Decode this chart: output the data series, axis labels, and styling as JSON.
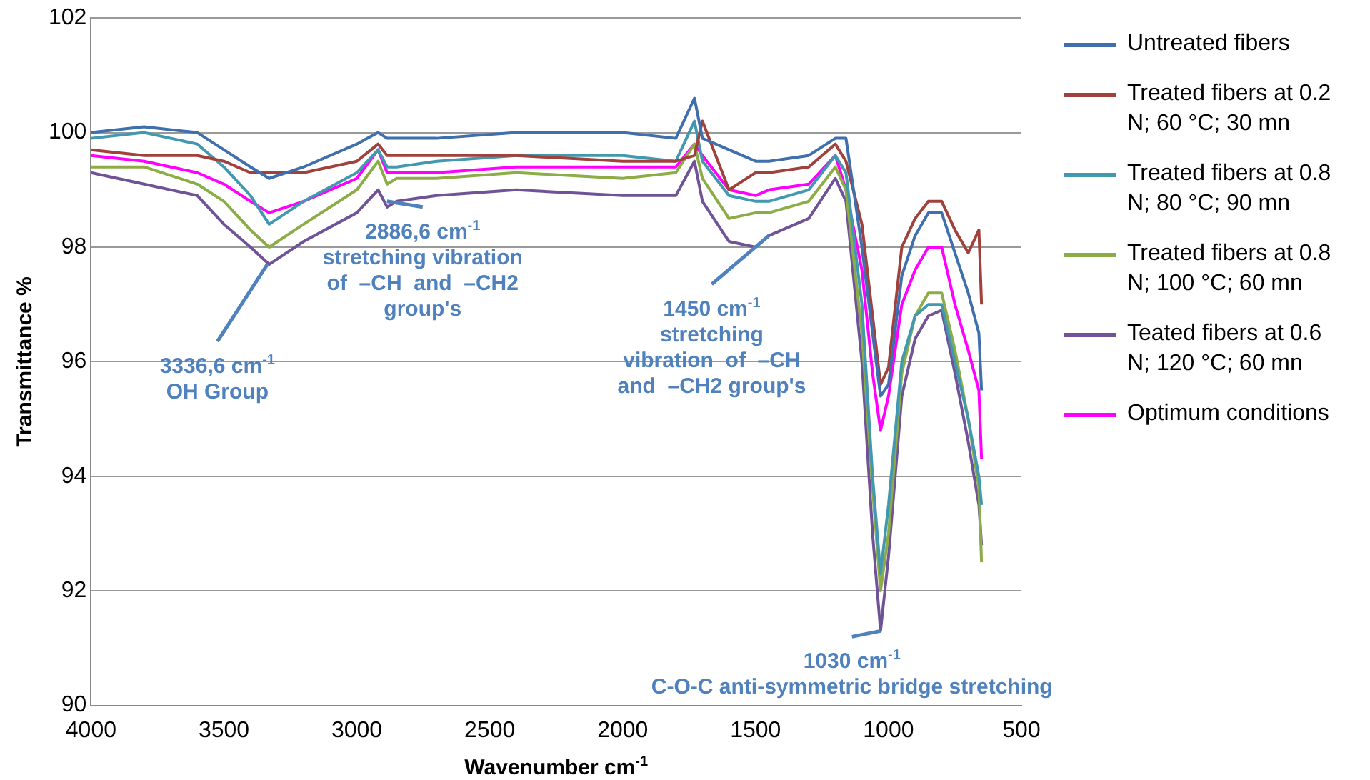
{
  "chart_data": {
    "type": "line",
    "xlabel": "Wavenumber cm$^{-1}$",
    "ylabel": "Transmittance %",
    "x": [
      4000,
      3800,
      3600,
      3500,
      3400,
      3330,
      3200,
      3000,
      2920,
      2886,
      2850,
      2700,
      2400,
      2000,
      1800,
      1730,
      1700,
      1600,
      1500,
      1450,
      1300,
      1200,
      1160,
      1100,
      1060,
      1030,
      1000,
      950,
      900,
      850,
      800,
      750,
      700,
      660,
      650
    ],
    "series": [
      {
        "name": "Untreated fibers",
        "color": "#3f6fad",
        "values": [
          100.0,
          100.1,
          100.0,
          99.7,
          99.4,
          99.2,
          99.4,
          99.8,
          100.0,
          99.9,
          99.9,
          99.9,
          100.0,
          100.0,
          99.9,
          100.6,
          99.9,
          99.7,
          99.5,
          99.5,
          99.6,
          99.9,
          99.9,
          98.0,
          96.5,
          95.4,
          95.6,
          97.5,
          98.2,
          98.6,
          98.6,
          97.9,
          97.2,
          96.5,
          95.5
        ]
      },
      {
        "name": "Treated fibers at 0.2 N; 60 °C; 30 mn",
        "color": "#a0413c",
        "values": [
          99.7,
          99.6,
          99.6,
          99.5,
          99.3,
          99.3,
          99.3,
          99.5,
          99.8,
          99.6,
          99.6,
          99.6,
          99.6,
          99.5,
          99.5,
          99.6,
          100.2,
          99.0,
          99.3,
          99.3,
          99.4,
          99.8,
          99.5,
          98.4,
          96.8,
          95.6,
          95.9,
          98.0,
          98.5,
          98.8,
          98.8,
          98.3,
          97.9,
          98.3,
          97.0
        ]
      },
      {
        "name": "Treated fibers at 0.8 N; 80 °C; 90 mn",
        "color": "#4198af",
        "values": [
          99.9,
          100.0,
          99.8,
          99.4,
          98.9,
          98.4,
          98.8,
          99.3,
          99.7,
          99.4,
          99.4,
          99.5,
          99.6,
          99.6,
          99.5,
          100.2,
          99.5,
          98.9,
          98.8,
          98.8,
          99.0,
          99.6,
          99.3,
          97.0,
          94.0,
          92.3,
          93.5,
          96.0,
          96.8,
          97.0,
          97.0,
          96.0,
          95.0,
          94.0,
          93.5
        ]
      },
      {
        "name": "Treated fibers at 0.8 N; 100 °C; 60 mn",
        "color": "#8bac46",
        "values": [
          99.4,
          99.4,
          99.1,
          98.8,
          98.3,
          98.0,
          98.4,
          99.0,
          99.5,
          99.1,
          99.2,
          99.2,
          99.3,
          99.2,
          99.3,
          99.8,
          99.2,
          98.5,
          98.6,
          98.6,
          98.8,
          99.4,
          99.0,
          96.5,
          93.8,
          92.0,
          93.0,
          95.8,
          96.8,
          97.2,
          97.2,
          96.2,
          95.0,
          93.8,
          92.5
        ]
      },
      {
        "name": "Teated fibers at 0.6 N; 120 °C; 60 mn",
        "color": "#6f5396",
        "values": [
          99.3,
          99.1,
          98.9,
          98.4,
          98.0,
          97.7,
          98.1,
          98.6,
          99.0,
          98.7,
          98.8,
          98.9,
          99.0,
          98.9,
          98.9,
          99.5,
          98.8,
          98.1,
          98.0,
          98.2,
          98.5,
          99.2,
          98.8,
          96.0,
          93.0,
          91.3,
          92.6,
          95.4,
          96.4,
          96.8,
          96.9,
          95.8,
          94.6,
          93.5,
          92.8
        ]
      },
      {
        "name": "Optimum conditions",
        "color": "#ff00ff",
        "values": [
          99.6,
          99.5,
          99.3,
          99.1,
          98.8,
          98.6,
          98.8,
          99.2,
          99.7,
          99.3,
          99.3,
          99.3,
          99.4,
          99.4,
          99.4,
          99.8,
          99.6,
          99.0,
          98.9,
          99.0,
          99.1,
          99.6,
          99.0,
          97.6,
          95.8,
          94.8,
          95.4,
          97.0,
          97.6,
          98.0,
          98.0,
          97.0,
          96.2,
          95.5,
          94.3
        ]
      }
    ],
    "xlim": [
      4000,
      500
    ],
    "xticks": [
      4000,
      3500,
      3000,
      2500,
      2000,
      1500,
      1000,
      500
    ],
    "ylim": [
      90,
      102
    ],
    "yticks": [
      90,
      92,
      94,
      96,
      98,
      100,
      102
    ],
    "grid": "y",
    "legend": "right",
    "marker": "none",
    "line_style": "solid",
    "annotations": [
      {
        "text": "3336,6 cm$^{-1}$\nOH Group",
        "x": 3336.6,
        "y": 97.7
      },
      {
        "text": "2886,6 cm$^{-1}$\nstretching vibration\nof  –CH  and  –CH2\ngroup's",
        "x": 2886.6,
        "y": 98.8
      },
      {
        "text": "1450 cm$^{-1}$\nstretching\nvibration  of  –CH\nand  –CH2 group's",
        "x": 1450,
        "y": 98.2
      },
      {
        "text": "1030 cm$^{-1}$\nC-O-C anti-symmetric bridge stretching",
        "x": 1030,
        "y": 91.3
      }
    ]
  }
}
